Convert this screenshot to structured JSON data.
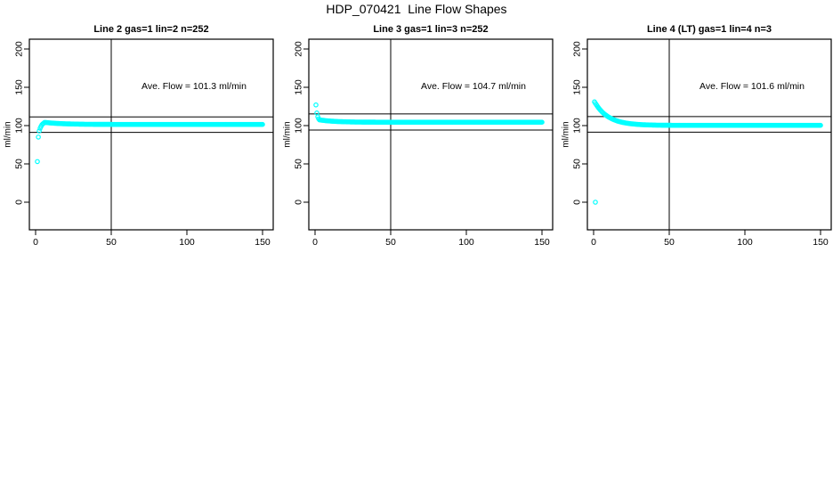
{
  "chart_data": {
    "type": "scatter",
    "title": "HDP_070421  Line Flow Shapes",
    "marker": {
      "shape": "open-circle",
      "color": "#00FFFF",
      "radius": 2.2,
      "stroke_width": 1.2
    },
    "frame_color": "#000000",
    "background": "#ffffff",
    "axes": {
      "x_ticks": [
        0,
        50,
        100,
        150
      ],
      "y_ticks": [
        0,
        50,
        100,
        150,
        200
      ],
      "ylabel": "ml/min",
      "xlim": [
        -4,
        157
      ],
      "ylim": [
        -35,
        214
      ],
      "grid": false
    },
    "reference_vline_x": 50,
    "legend": "none",
    "panels": [
      {
        "title": "Line 2 gas=1 lin=2 n=252",
        "n": 252,
        "ave_flow": 101.3,
        "ave_flow_units": "ml/min",
        "annotation": "Ave. Flow =  101.3  ml/min",
        "hlines": [
          111.4,
          91.2
        ],
        "series": [
          {
            "type": "points",
            "points": [
              [
                1.2,
                53
              ],
              [
                1.8,
                85
              ],
              [
                2.4,
                93
              ],
              [
                3.0,
                96.5
              ],
              [
                3.6,
                99
              ],
              [
                4.2,
                101
              ],
              [
                4.8,
                102.3
              ],
              [
                5.4,
                103.2
              ]
            ]
          },
          {
            "type": "decay",
            "from": 6,
            "to": 150,
            "step": 0.6,
            "y0": 104.2,
            "yinf": 101.5,
            "tau": 12
          }
        ]
      },
      {
        "title": "Line 3 gas=1 lin=3 n=252",
        "n": 252,
        "ave_flow": 104.7,
        "ave_flow_units": "ml/min",
        "annotation": "Ave. Flow =  104.7  ml/min",
        "hlines": [
          115.2,
          94.2
        ],
        "series": [
          {
            "type": "points",
            "points": [
              [
                0.6,
                127
              ],
              [
                1.2,
                116.5
              ],
              [
                1.8,
                111.5
              ],
              [
                2.4,
                108.8
              ]
            ]
          },
          {
            "type": "decay",
            "from": 3,
            "to": 150,
            "step": 0.6,
            "y0": 107.5,
            "yinf": 104.4,
            "tau": 10
          }
        ]
      },
      {
        "title": "Line 4 (LT) gas=1 lin=4 n=3",
        "n": 3,
        "ave_flow": 101.6,
        "ave_flow_units": "ml/min",
        "annotation": "Ave. Flow =  101.6  ml/min",
        "hlines": [
          111.8,
          91.4
        ],
        "series": [
          {
            "type": "points",
            "points": [
              [
                1.2,
                0
              ]
            ]
          },
          {
            "type": "decay",
            "from": 0.6,
            "to": 150,
            "step": 0.6,
            "y0": 131,
            "yinf": 100.3,
            "tau": 9
          }
        ]
      }
    ]
  }
}
